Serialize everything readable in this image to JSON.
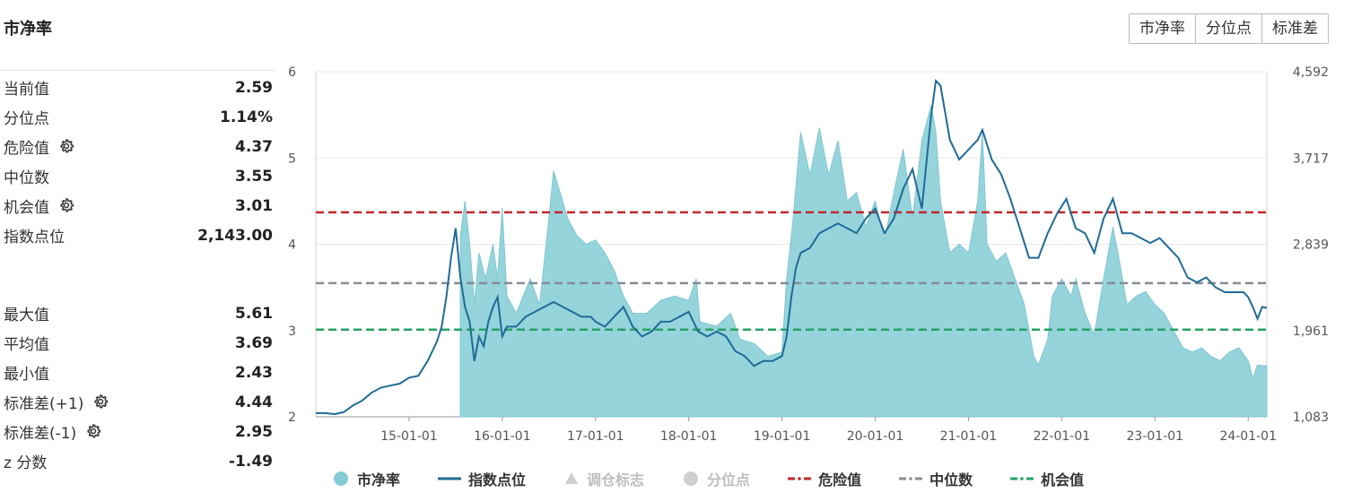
{
  "page": {
    "title": "市净率"
  },
  "tabs": [
    "市净率",
    "分位点",
    "标准差"
  ],
  "stats_top": [
    {
      "label": "当前值",
      "value": "2.59",
      "gear": false
    },
    {
      "label": "分位点",
      "value": "1.14%",
      "gear": false
    },
    {
      "label": "危险值",
      "value": "4.37",
      "gear": true
    },
    {
      "label": "中位数",
      "value": "3.55",
      "gear": false
    },
    {
      "label": "机会值",
      "value": "3.01",
      "gear": true
    },
    {
      "label": "指数点位",
      "value": "2,143.00",
      "gear": false
    }
  ],
  "stats_bottom": [
    {
      "label": "最大值",
      "value": "5.61",
      "gear": false
    },
    {
      "label": "平均值",
      "value": "3.69",
      "gear": false
    },
    {
      "label": "最小值",
      "value": "2.43",
      "gear": false
    },
    {
      "label": "标准差(+1)",
      "value": "4.44",
      "gear": true
    },
    {
      "label": "标准差(-1)",
      "value": "2.95",
      "gear": true
    },
    {
      "label": "z 分数",
      "value": "-1.49",
      "gear": false
    }
  ],
  "legend": [
    {
      "label": "市净率",
      "symbol": "circle",
      "color": "#84cdd6",
      "active": true
    },
    {
      "label": "指数点位",
      "symbol": "line",
      "color": "#1f6b96",
      "active": true
    },
    {
      "label": "调仓标志",
      "symbol": "triangle",
      "color": "#cfcfcf",
      "active": false
    },
    {
      "label": "分位点",
      "symbol": "circle",
      "color": "#cfcfcf",
      "active": false
    },
    {
      "label": "危险值",
      "symbol": "dash",
      "color": "#c0282d",
      "active": true
    },
    {
      "label": "中位数",
      "symbol": "dash",
      "color": "#868c95",
      "active": true
    },
    {
      "label": "机会值",
      "symbol": "dash",
      "color": "#26a267",
      "active": true
    }
  ],
  "chart_data": {
    "type": "area",
    "x_ticks": [
      "15-01-01",
      "16-01-01",
      "17-01-01",
      "18-01-01",
      "19-01-01",
      "20-01-01",
      "21-01-01",
      "22-01-01",
      "23-01-01",
      "24-01-01"
    ],
    "x_range": [
      2014.0,
      2024.2
    ],
    "y_left": {
      "ticks": [
        "2",
        "3",
        "4",
        "5",
        "6"
      ],
      "range": [
        2,
        6
      ]
    },
    "y_right": {
      "ticks": [
        "1,083",
        "1,961",
        "2,839",
        "3,717",
        "4,592"
      ],
      "range": [
        1083,
        4592
      ]
    },
    "reference_lines": [
      {
        "name": "危险值",
        "value": 4.37,
        "color": "#c0282d"
      },
      {
        "name": "中位数",
        "value": 3.55,
        "color": "#868c95"
      },
      {
        "name": "机会值",
        "value": 3.01,
        "color": "#26a267"
      }
    ],
    "series": [
      {
        "name": "市净率",
        "axis": "left",
        "color": "#84cdd6",
        "points": [
          [
            2015.55,
            2
          ],
          [
            2015.55,
            4.1
          ],
          [
            2015.6,
            4.5
          ],
          [
            2015.65,
            4.0
          ],
          [
            2015.7,
            3.3
          ],
          [
            2015.75,
            3.9
          ],
          [
            2015.82,
            3.6
          ],
          [
            2015.9,
            4.0
          ],
          [
            2015.95,
            3.6
          ],
          [
            2016.0,
            4.42
          ],
          [
            2016.05,
            3.4
          ],
          [
            2016.15,
            3.2
          ],
          [
            2016.3,
            3.6
          ],
          [
            2016.4,
            3.3
          ],
          [
            2016.5,
            4.3
          ],
          [
            2016.55,
            4.85
          ],
          [
            2016.62,
            4.6
          ],
          [
            2016.7,
            4.3
          ],
          [
            2016.8,
            4.1
          ],
          [
            2016.9,
            4.0
          ],
          [
            2017.0,
            4.05
          ],
          [
            2017.1,
            3.9
          ],
          [
            2017.2,
            3.7
          ],
          [
            2017.3,
            3.4
          ],
          [
            2017.4,
            3.2
          ],
          [
            2017.55,
            3.2
          ],
          [
            2017.7,
            3.35
          ],
          [
            2017.85,
            3.4
          ],
          [
            2018.0,
            3.35
          ],
          [
            2018.08,
            3.6
          ],
          [
            2018.12,
            3.1
          ],
          [
            2018.3,
            3.05
          ],
          [
            2018.45,
            3.2
          ],
          [
            2018.55,
            2.9
          ],
          [
            2018.7,
            2.85
          ],
          [
            2018.85,
            2.7
          ],
          [
            2019.0,
            2.75
          ],
          [
            2019.05,
            3.6
          ],
          [
            2019.12,
            4.3
          ],
          [
            2019.2,
            5.3
          ],
          [
            2019.3,
            4.8
          ],
          [
            2019.4,
            5.35
          ],
          [
            2019.5,
            4.8
          ],
          [
            2019.6,
            5.2
          ],
          [
            2019.7,
            4.5
          ],
          [
            2019.8,
            4.6
          ],
          [
            2019.9,
            4.2
          ],
          [
            2020.0,
            4.5
          ],
          [
            2020.1,
            4.05
          ],
          [
            2020.2,
            4.6
          ],
          [
            2020.3,
            5.1
          ],
          [
            2020.4,
            4.3
          ],
          [
            2020.5,
            5.2
          ],
          [
            2020.6,
            5.61
          ],
          [
            2020.65,
            5.3
          ],
          [
            2020.7,
            4.5
          ],
          [
            2020.8,
            3.9
          ],
          [
            2020.9,
            4.0
          ],
          [
            2021.0,
            3.9
          ],
          [
            2021.1,
            4.5
          ],
          [
            2021.15,
            5.3
          ],
          [
            2021.2,
            4.0
          ],
          [
            2021.3,
            3.8
          ],
          [
            2021.4,
            3.9
          ],
          [
            2021.5,
            3.6
          ],
          [
            2021.6,
            3.3
          ],
          [
            2021.7,
            2.7
          ],
          [
            2021.75,
            2.6
          ],
          [
            2021.85,
            2.9
          ],
          [
            2021.9,
            3.4
          ],
          [
            2022.0,
            3.6
          ],
          [
            2022.1,
            3.4
          ],
          [
            2022.15,
            3.6
          ],
          [
            2022.25,
            3.2
          ],
          [
            2022.35,
            2.95
          ],
          [
            2022.45,
            3.6
          ],
          [
            2022.55,
            4.2
          ],
          [
            2022.62,
            3.8
          ],
          [
            2022.7,
            3.3
          ],
          [
            2022.8,
            3.4
          ],
          [
            2022.9,
            3.45
          ],
          [
            2023.0,
            3.3
          ],
          [
            2023.1,
            3.2
          ],
          [
            2023.2,
            3.0
          ],
          [
            2023.3,
            2.8
          ],
          [
            2023.4,
            2.75
          ],
          [
            2023.5,
            2.8
          ],
          [
            2023.6,
            2.7
          ],
          [
            2023.7,
            2.65
          ],
          [
            2023.8,
            2.75
          ],
          [
            2023.9,
            2.8
          ],
          [
            2024.0,
            2.65
          ],
          [
            2024.05,
            2.45
          ],
          [
            2024.1,
            2.6
          ],
          [
            2024.2,
            2.59
          ],
          [
            2024.2,
            2
          ]
        ]
      },
      {
        "name": "指数点位",
        "axis": "right",
        "color": "#1f6b96",
        "points": [
          [
            2014.0,
            1120
          ],
          [
            2014.1,
            1120
          ],
          [
            2014.2,
            1110
          ],
          [
            2014.3,
            1130
          ],
          [
            2014.4,
            1200
          ],
          [
            2014.5,
            1250
          ],
          [
            2014.6,
            1330
          ],
          [
            2014.7,
            1380
          ],
          [
            2014.8,
            1400
          ],
          [
            2014.9,
            1420
          ],
          [
            2015.0,
            1480
          ],
          [
            2015.1,
            1500
          ],
          [
            2015.2,
            1650
          ],
          [
            2015.3,
            1850
          ],
          [
            2015.35,
            2000
          ],
          [
            2015.4,
            2300
          ],
          [
            2015.45,
            2700
          ],
          [
            2015.5,
            3000
          ],
          [
            2015.55,
            2500
          ],
          [
            2015.6,
            2200
          ],
          [
            2015.65,
            2050
          ],
          [
            2015.7,
            1650
          ],
          [
            2015.75,
            1900
          ],
          [
            2015.8,
            1800
          ],
          [
            2015.85,
            2050
          ],
          [
            2015.9,
            2200
          ],
          [
            2015.95,
            2300
          ],
          [
            2016.0,
            1900
          ],
          [
            2016.05,
            2000
          ],
          [
            2016.15,
            2000
          ],
          [
            2016.25,
            2100
          ],
          [
            2016.35,
            2150
          ],
          [
            2016.45,
            2200
          ],
          [
            2016.55,
            2250
          ],
          [
            2016.65,
            2200
          ],
          [
            2016.75,
            2150
          ],
          [
            2016.85,
            2100
          ],
          [
            2016.95,
            2100
          ],
          [
            2017.0,
            2050
          ],
          [
            2017.1,
            2000
          ],
          [
            2017.2,
            2100
          ],
          [
            2017.3,
            2200
          ],
          [
            2017.4,
            2000
          ],
          [
            2017.5,
            1900
          ],
          [
            2017.6,
            1950
          ],
          [
            2017.7,
            2050
          ],
          [
            2017.8,
            2050
          ],
          [
            2017.9,
            2100
          ],
          [
            2018.0,
            2150
          ],
          [
            2018.1,
            1950
          ],
          [
            2018.2,
            1900
          ],
          [
            2018.3,
            1950
          ],
          [
            2018.4,
            1900
          ],
          [
            2018.5,
            1750
          ],
          [
            2018.6,
            1700
          ],
          [
            2018.7,
            1600
          ],
          [
            2018.8,
            1650
          ],
          [
            2018.9,
            1650
          ],
          [
            2019.0,
            1700
          ],
          [
            2019.05,
            1900
          ],
          [
            2019.1,
            2300
          ],
          [
            2019.15,
            2600
          ],
          [
            2019.2,
            2750
          ],
          [
            2019.3,
            2800
          ],
          [
            2019.4,
            2950
          ],
          [
            2019.5,
            3000
          ],
          [
            2019.6,
            3050
          ],
          [
            2019.7,
            3000
          ],
          [
            2019.8,
            2950
          ],
          [
            2019.9,
            3100
          ],
          [
            2020.0,
            3200
          ],
          [
            2020.1,
            2950
          ],
          [
            2020.2,
            3100
          ],
          [
            2020.3,
            3400
          ],
          [
            2020.4,
            3600
          ],
          [
            2020.5,
            3200
          ],
          [
            2020.6,
            4150
          ],
          [
            2020.65,
            4500
          ],
          [
            2020.7,
            4450
          ],
          [
            2020.8,
            3900
          ],
          [
            2020.9,
            3700
          ],
          [
            2021.0,
            3800
          ],
          [
            2021.1,
            3900
          ],
          [
            2021.15,
            4000
          ],
          [
            2021.25,
            3700
          ],
          [
            2021.35,
            3550
          ],
          [
            2021.45,
            3300
          ],
          [
            2021.55,
            3000
          ],
          [
            2021.65,
            2700
          ],
          [
            2021.75,
            2700
          ],
          [
            2021.85,
            2950
          ],
          [
            2021.95,
            3150
          ],
          [
            2022.05,
            3300
          ],
          [
            2022.15,
            3000
          ],
          [
            2022.25,
            2950
          ],
          [
            2022.35,
            2750
          ],
          [
            2022.45,
            3100
          ],
          [
            2022.55,
            3300
          ],
          [
            2022.65,
            2950
          ],
          [
            2022.75,
            2950
          ],
          [
            2022.85,
            2900
          ],
          [
            2022.95,
            2850
          ],
          [
            2023.05,
            2900
          ],
          [
            2023.15,
            2800
          ],
          [
            2023.25,
            2700
          ],
          [
            2023.35,
            2500
          ],
          [
            2023.45,
            2450
          ],
          [
            2023.55,
            2500
          ],
          [
            2023.65,
            2400
          ],
          [
            2023.75,
            2350
          ],
          [
            2023.85,
            2350
          ],
          [
            2023.95,
            2350
          ],
          [
            2024.0,
            2300
          ],
          [
            2024.05,
            2200
          ],
          [
            2024.1,
            2080
          ],
          [
            2024.15,
            2200
          ],
          [
            2024.2,
            2190
          ]
        ]
      }
    ]
  }
}
